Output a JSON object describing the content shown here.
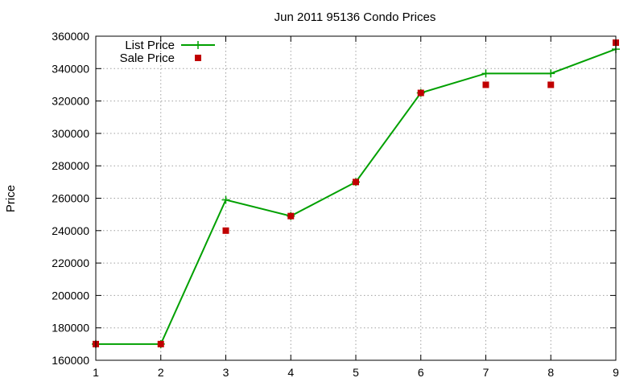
{
  "chart_data": {
    "type": "line",
    "title": "Jun 2011 95136 Condo Prices",
    "xlabel": "",
    "ylabel": "Price",
    "x": [
      1,
      2,
      3,
      4,
      5,
      6,
      7,
      8,
      9
    ],
    "xlim": [
      1,
      9
    ],
    "ylim": [
      160000,
      360000
    ],
    "xticks": [
      "1",
      "2",
      "3",
      "4",
      "5",
      "6",
      "7",
      "8",
      "9"
    ],
    "yticks": [
      "160000",
      "180000",
      "200000",
      "220000",
      "240000",
      "260000",
      "280000",
      "300000",
      "320000",
      "340000",
      "360000"
    ],
    "grid": true,
    "legend_position": "top-left",
    "series": [
      {
        "name": "List Price",
        "style": "linespoints",
        "marker": "plus",
        "color": "#00a000",
        "values": [
          170000,
          170000,
          259000,
          249000,
          270000,
          325000,
          337000,
          337000,
          352000
        ]
      },
      {
        "name": "Sale Price",
        "style": "points",
        "marker": "square",
        "color": "#c00000",
        "values": [
          170000,
          170000,
          240000,
          249000,
          270000,
          325000,
          330000,
          330000,
          356000
        ]
      }
    ]
  }
}
